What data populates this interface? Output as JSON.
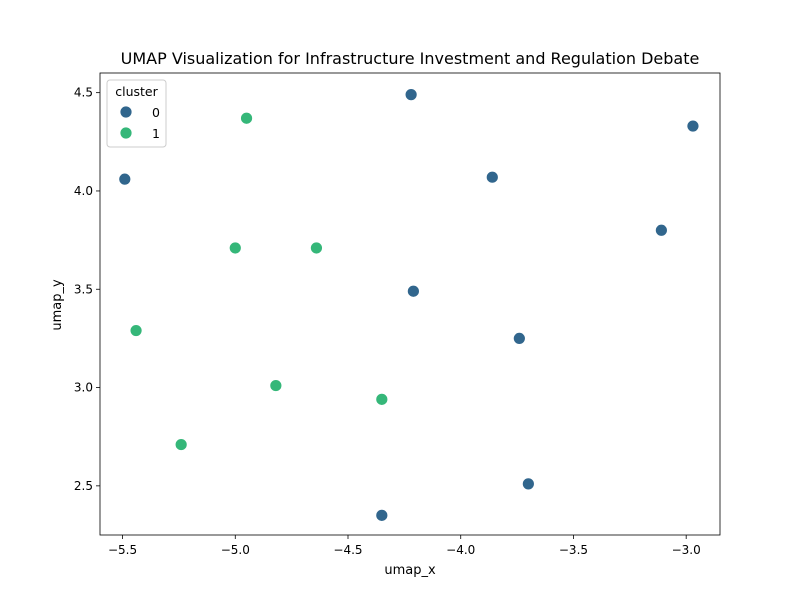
{
  "chart_data": {
    "type": "scatter",
    "title": "UMAP Visualization for Infrastructure Investment and Regulation Debate",
    "xlabel": "umap_x",
    "ylabel": "umap_y",
    "xlim": [
      -5.6,
      -2.85
    ],
    "ylim": [
      2.25,
      4.6
    ],
    "xticks": [
      -5.5,
      -5.0,
      -4.5,
      -4.0,
      -3.5,
      -3.0
    ],
    "yticks": [
      2.5,
      3.0,
      3.5,
      4.0,
      4.5
    ],
    "xtick_labels": [
      "−5.5",
      "−5.0",
      "−4.5",
      "−4.0",
      "−3.5",
      "−3.0"
    ],
    "ytick_labels": [
      "2.5",
      "3.0",
      "3.5",
      "4.0",
      "4.5"
    ],
    "grid": false,
    "legend": {
      "title": "cluster",
      "placement": "top-left",
      "entries": [
        "0",
        "1"
      ]
    },
    "colors": {
      "0": "#31668d",
      "1": "#35b779"
    },
    "series": [
      {
        "name": "0",
        "points": [
          {
            "x": -4.22,
            "y": 4.49
          },
          {
            "x": -2.97,
            "y": 4.33
          },
          {
            "x": -5.49,
            "y": 4.06
          },
          {
            "x": -3.86,
            "y": 4.07
          },
          {
            "x": -3.11,
            "y": 3.8
          },
          {
            "x": -4.21,
            "y": 3.49
          },
          {
            "x": -3.74,
            "y": 3.25
          },
          {
            "x": -3.7,
            "y": 2.51
          },
          {
            "x": -4.35,
            "y": 2.35
          }
        ]
      },
      {
        "name": "1",
        "points": [
          {
            "x": -4.95,
            "y": 4.37
          },
          {
            "x": -5.0,
            "y": 3.71
          },
          {
            "x": -4.64,
            "y": 3.71
          },
          {
            "x": -5.44,
            "y": 3.29
          },
          {
            "x": -4.82,
            "y": 3.01
          },
          {
            "x": -4.35,
            "y": 2.94
          },
          {
            "x": -5.24,
            "y": 2.71
          }
        ]
      }
    ]
  }
}
